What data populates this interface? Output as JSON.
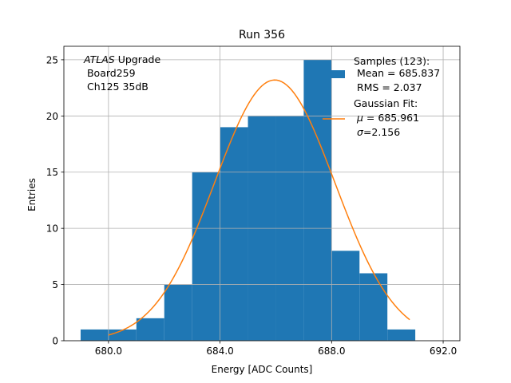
{
  "chart_data": {
    "type": "bar",
    "title": "Run 356",
    "xlabel": "Energy [ADC Counts]",
    "ylabel": "Entries",
    "xlim": [
      678.4,
      692.6
    ],
    "ylim": [
      0,
      26.2
    ],
    "grid": true,
    "xticks": [
      680.0,
      684.0,
      688.0,
      692.0
    ],
    "xtick_labels": [
      "680.0",
      "684.0",
      "688.0",
      "692.0"
    ],
    "yticks": [
      0,
      5,
      10,
      15,
      20,
      25
    ],
    "ytick_labels": [
      "0",
      "5",
      "10",
      "15",
      "20",
      "25"
    ],
    "bin_edges": [
      679,
      680,
      681,
      682,
      683,
      684,
      685,
      686,
      687,
      688,
      689,
      690,
      691
    ],
    "counts": [
      1,
      1,
      2,
      5,
      15,
      19,
      20,
      20,
      25,
      8,
      6,
      1
    ],
    "bar_color": "#1f77b4",
    "fit": {
      "type": "gaussian",
      "mu": 685.961,
      "sigma": 2.156,
      "amplitude": 23.2,
      "x_range": [
        680.0,
        690.8
      ],
      "color": "#ff7f0e"
    },
    "annotation": {
      "line1_italic": "ATLAS",
      "line1_rest": " Upgrade",
      "line2": " Board259",
      "line3": " Ch125 35dB"
    },
    "legend": {
      "position": "top-right",
      "samples_title": "Samples (123):",
      "samples_mean": " Mean = 685.837",
      "samples_rms": " RMS = 2.037",
      "fit_title": "Gaussian Fit:",
      "fit_mu_symbol": "μ",
      "fit_mu_value": " = 685.961",
      "fit_sigma_symbol": "σ",
      "fit_sigma_value": "=2.156"
    }
  }
}
